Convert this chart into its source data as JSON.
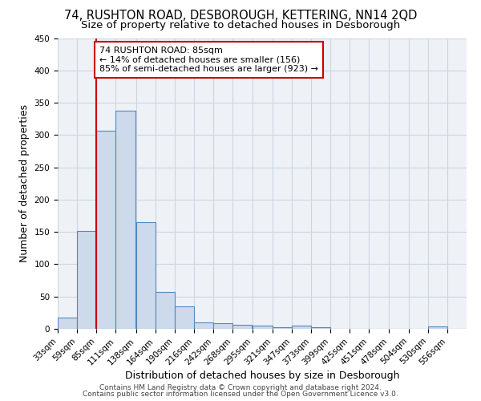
{
  "title1": "74, RUSHTON ROAD, DESBOROUGH, KETTERING, NN14 2QD",
  "title2": "Size of property relative to detached houses in Desborough",
  "xlabel": "Distribution of detached houses by size in Desborough",
  "ylabel": "Number of detached properties",
  "footnote1": "Contains HM Land Registry data © Crown copyright and database right 2024.",
  "footnote2": "Contains public sector information licensed under the Open Government Licence v3.0.",
  "bins": [
    33,
    59,
    85,
    111,
    138,
    164,
    190,
    216,
    242,
    268,
    295,
    321,
    347,
    373,
    399,
    425,
    451,
    478,
    504,
    530,
    556
  ],
  "counts": [
    17,
    152,
    307,
    338,
    165,
    57,
    35,
    10,
    9,
    6,
    5,
    3,
    5,
    3,
    0,
    0,
    0,
    0,
    0,
    4,
    0
  ],
  "bar_facecolor": "#ccdaeb",
  "bar_edgecolor": "#5588bb",
  "property_size": 85,
  "red_line_color": "#cc0000",
  "annotation_line1": "74 RUSHTON ROAD: 85sqm",
  "annotation_line2": "← 14% of detached houses are smaller (156)",
  "annotation_line3": "85% of semi-detached houses are larger (923) →",
  "annotation_box_color": "#cc0000",
  "grid_color": "#ccd5e0",
  "ylim": [
    0,
    450
  ],
  "xlim_min": 33,
  "xlim_max": 582,
  "background_color": "#eef2f7",
  "title_fontsize": 10.5,
  "subtitle_fontsize": 9.5,
  "tick_fontsize": 7.5,
  "label_fontsize": 9,
  "footnote_fontsize": 6.5
}
